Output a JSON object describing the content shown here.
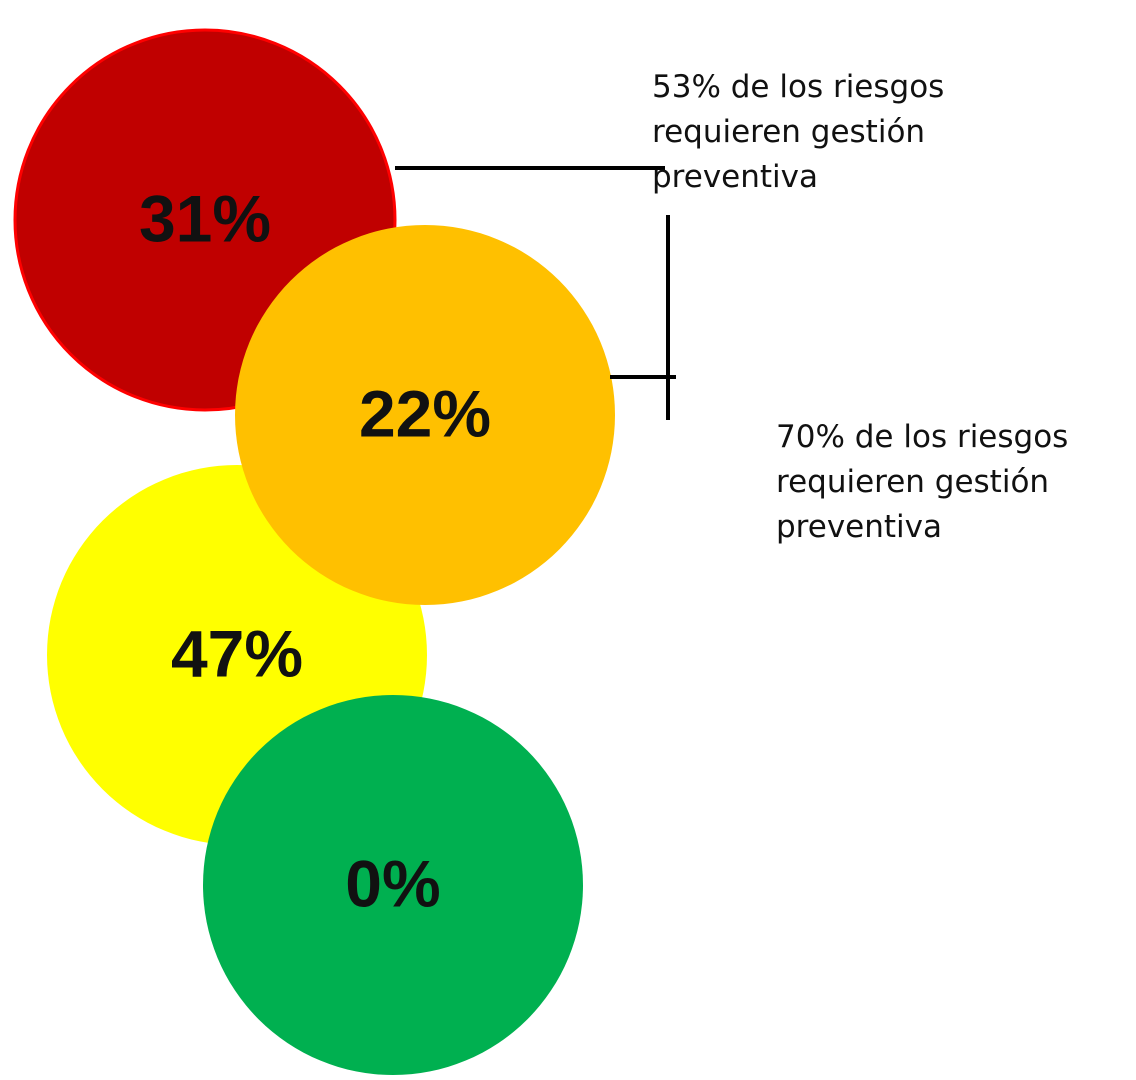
{
  "nodes": [
    {
      "label": "31%",
      "color": "#c00000"
    },
    {
      "label": "22%",
      "color": "#ffc000"
    },
    {
      "label": "47%",
      "color": "#ffff00"
    },
    {
      "label": "0%",
      "color": "#00b050"
    }
  ],
  "annotations": [
    {
      "lines": [
        "53% de los riesgos",
        "requieren gestión",
        "preventiva"
      ]
    },
    {
      "lines": [
        "70% de los riesgos",
        "requieren gestión",
        "preventiva"
      ]
    }
  ]
}
